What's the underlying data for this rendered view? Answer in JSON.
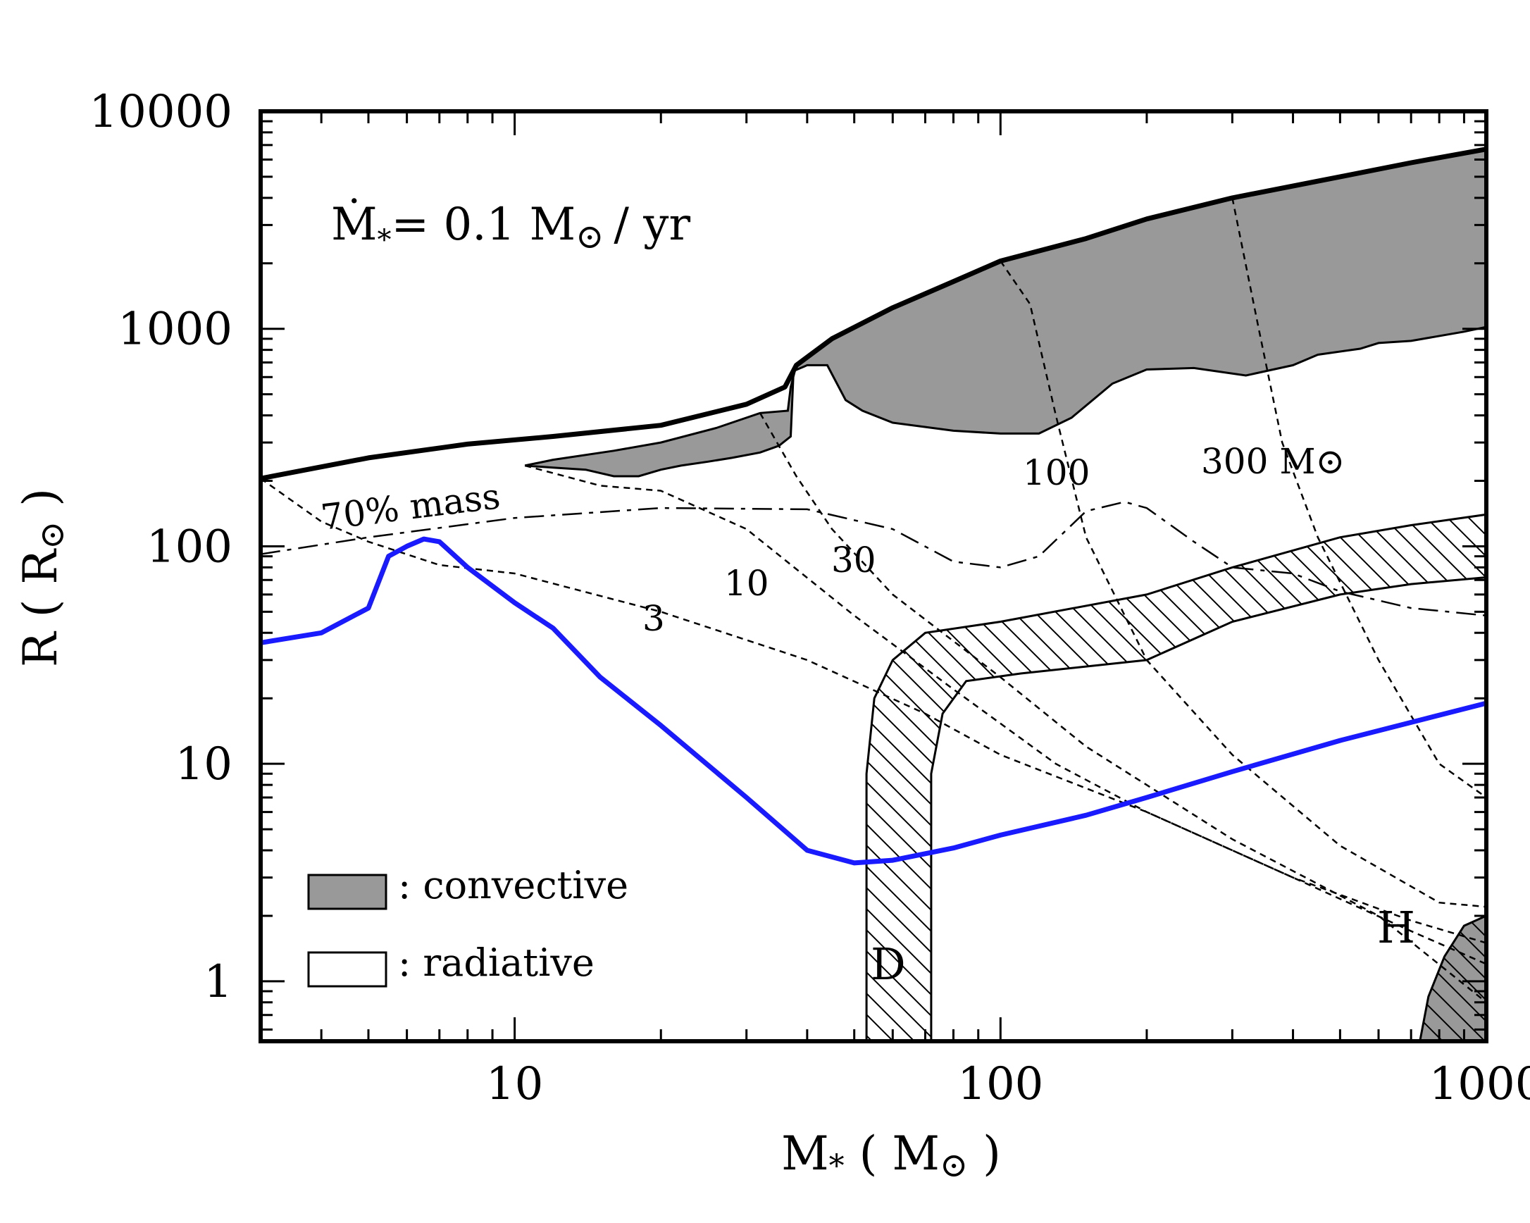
{
  "chart_data": {
    "type": "line",
    "title": "",
    "accretion_label": {
      "prefix": "Ṁ",
      "sub": "*",
      "eq": "= 0.1 M",
      "sun": "⊙",
      "unit": "/ yr"
    },
    "xlabel": {
      "sym": "M",
      "sub": "*",
      "open": " ( M",
      "sun": "⊙",
      "close": " )"
    },
    "ylabel": {
      "text": "R ( R",
      "sun": "⊙",
      "close": " )"
    },
    "xscale": "log",
    "yscale": "log",
    "xlim": [
      3,
      1000
    ],
    "ylim": [
      0.53,
      10000
    ],
    "x_ticks": [
      {
        "value": 10,
        "label": "10"
      },
      {
        "value": 100,
        "label": "100"
      },
      {
        "value": 1000,
        "label": "1000"
      }
    ],
    "y_ticks": [
      {
        "value": 1,
        "label": "1"
      },
      {
        "value": 10,
        "label": "10"
      },
      {
        "value": 100,
        "label": "100"
      },
      {
        "value": 1000,
        "label": "1000"
      },
      {
        "value": 10000,
        "label": "10000"
      }
    ],
    "stellar_radius": [
      [
        3,
        205
      ],
      [
        5,
        255
      ],
      [
        8,
        295
      ],
      [
        12,
        320
      ],
      [
        20,
        360
      ],
      [
        30,
        450
      ],
      [
        36,
        540
      ],
      [
        38,
        680
      ],
      [
        45,
        900
      ],
      [
        60,
        1250
      ],
      [
        80,
        1650
      ],
      [
        100,
        2050
      ],
      [
        150,
        2600
      ],
      [
        200,
        3200
      ],
      [
        300,
        4000
      ],
      [
        500,
        5000
      ],
      [
        700,
        5800
      ],
      [
        1000,
        6700
      ]
    ],
    "convective_zone_upper": [
      [
        10.5,
        235
      ],
      [
        12,
        250
      ],
      [
        16,
        275
      ],
      [
        20,
        300
      ],
      [
        26,
        350
      ],
      [
        32,
        410
      ],
      [
        36.5,
        420
      ],
      [
        37,
        540
      ],
      [
        38,
        680
      ],
      [
        45,
        900
      ],
      [
        60,
        1250
      ],
      [
        80,
        1650
      ],
      [
        100,
        2050
      ],
      [
        150,
        2600
      ],
      [
        200,
        3200
      ],
      [
        300,
        4000
      ],
      [
        500,
        5000
      ],
      [
        700,
        5800
      ],
      [
        1000,
        6700
      ]
    ],
    "convective_zone_lower": [
      [
        1000,
        1020
      ],
      [
        900,
        970
      ],
      [
        700,
        880
      ],
      [
        600,
        860
      ],
      [
        550,
        810
      ],
      [
        450,
        760
      ],
      [
        400,
        680
      ],
      [
        320,
        610
      ],
      [
        250,
        660
      ],
      [
        200,
        650
      ],
      [
        170,
        560
      ],
      [
        140,
        390
      ],
      [
        120,
        330
      ],
      [
        100,
        330
      ],
      [
        80,
        340
      ],
      [
        60,
        370
      ],
      [
        52,
        420
      ],
      [
        48,
        470
      ],
      [
        44,
        680
      ],
      [
        40,
        680
      ],
      [
        37.5,
        640
      ],
      [
        37,
        320
      ],
      [
        35,
        290
      ],
      [
        32,
        270
      ],
      [
        28,
        255
      ],
      [
        25,
        245
      ],
      [
        22,
        235
      ],
      [
        20,
        225
      ],
      [
        18,
        210
      ],
      [
        16,
        210
      ],
      [
        14,
        225
      ],
      [
        12,
        230
      ],
      [
        10.5,
        235
      ]
    ],
    "blue_curve": [
      [
        3,
        36
      ],
      [
        4,
        40
      ],
      [
        5,
        52
      ],
      [
        5.5,
        90
      ],
      [
        6,
        100
      ],
      [
        6.5,
        108
      ],
      [
        7,
        105
      ],
      [
        8,
        80
      ],
      [
        10,
        55
      ],
      [
        12,
        42
      ],
      [
        15,
        25
      ],
      [
        20,
        15
      ],
      [
        30,
        7
      ],
      [
        40,
        4
      ],
      [
        50,
        3.5
      ],
      [
        60,
        3.6
      ],
      [
        80,
        4.1
      ],
      [
        100,
        4.7
      ],
      [
        150,
        5.8
      ],
      [
        200,
        7
      ],
      [
        300,
        9.2
      ],
      [
        500,
        12.8
      ],
      [
        700,
        15.5
      ],
      [
        1000,
        19
      ]
    ],
    "mass_70_line": [
      [
        3,
        92
      ],
      [
        5,
        110
      ],
      [
        10,
        135
      ],
      [
        20,
        150
      ],
      [
        40,
        148
      ],
      [
        60,
        120
      ],
      [
        80,
        85
      ],
      [
        100,
        80
      ],
      [
        120,
        90
      ],
      [
        150,
        145
      ],
      [
        180,
        160
      ],
      [
        200,
        150
      ],
      [
        250,
        105
      ],
      [
        300,
        80
      ],
      [
        400,
        75
      ],
      [
        500,
        62
      ],
      [
        700,
        52
      ],
      [
        1000,
        48
      ]
    ],
    "mass_70_label": "70% mass",
    "iso_mass_lines": [
      {
        "label": "3",
        "points": [
          [
            3,
            205
          ],
          [
            4,
            130
          ],
          [
            5,
            105
          ],
          [
            7,
            82
          ],
          [
            10,
            75
          ],
          [
            20,
            50
          ],
          [
            40,
            30
          ],
          [
            70,
            17
          ],
          [
            100,
            11
          ],
          [
            200,
            6
          ],
          [
            400,
            3
          ],
          [
            700,
            1.7
          ],
          [
            1000,
            1.2
          ]
        ]
      },
      {
        "label": "10",
        "points": [
          [
            10.5,
            235
          ],
          [
            15,
            190
          ],
          [
            20,
            180
          ],
          [
            30,
            120
          ],
          [
            50,
            48
          ],
          [
            80,
            22
          ],
          [
            130,
            10
          ],
          [
            200,
            6
          ],
          [
            400,
            3
          ],
          [
            700,
            1.9
          ],
          [
            1000,
            1.5
          ]
        ]
      },
      {
        "label": "30",
        "points": [
          [
            32,
            410
          ],
          [
            38,
            210
          ],
          [
            45,
            120
          ],
          [
            60,
            60
          ],
          [
            100,
            25
          ],
          [
            150,
            12
          ],
          [
            300,
            4.5
          ],
          [
            600,
            2
          ],
          [
            1000,
            0.8
          ]
        ]
      },
      {
        "label": "100",
        "points": [
          [
            100,
            2050
          ],
          [
            115,
            1300
          ],
          [
            130,
            400
          ],
          [
            150,
            110
          ],
          [
            200,
            30
          ],
          [
            300,
            11
          ],
          [
            500,
            4.2
          ],
          [
            800,
            2.3
          ],
          [
            1000,
            2.2
          ]
        ]
      },
      {
        "label": "300 M⊙",
        "points": [
          [
            300,
            4000
          ],
          [
            340,
            1000
          ],
          [
            380,
            300
          ],
          [
            450,
            110
          ],
          [
            600,
            30
          ],
          [
            800,
            10
          ],
          [
            1000,
            7
          ]
        ]
      }
    ],
    "deuterium_band": {
      "label": "D",
      "outer": [
        [
          53,
          0.53
        ],
        [
          53,
          9
        ],
        [
          55,
          20
        ],
        [
          60,
          30
        ],
        [
          70,
          40
        ],
        [
          100,
          45
        ],
        [
          200,
          60
        ],
        [
          300,
          80
        ],
        [
          500,
          110
        ],
        [
          700,
          125
        ],
        [
          1000,
          140
        ]
      ],
      "inner": [
        [
          72,
          0.53
        ],
        [
          72,
          9
        ],
        [
          76,
          17
        ],
        [
          85,
          24
        ],
        [
          110,
          26
        ],
        [
          200,
          30
        ],
        [
          300,
          45
        ],
        [
          500,
          60
        ],
        [
          700,
          67
        ],
        [
          1000,
          72
        ]
      ]
    },
    "hydrogen_zone": {
      "label": "H",
      "points": [
        [
          730,
          0.53
        ],
        [
          760,
          0.85
        ],
        [
          820,
          1.3
        ],
        [
          900,
          1.8
        ],
        [
          1000,
          2.0
        ],
        [
          1000,
          0.53
        ]
      ]
    },
    "legend": [
      {
        "label": ": convective",
        "fill": "#999999"
      },
      {
        "label": ": radiative",
        "fill": "#ffffff"
      }
    ],
    "colors": {
      "convective": "#999999",
      "blue_curve": "#1a1aff",
      "lines": "#000000"
    }
  }
}
